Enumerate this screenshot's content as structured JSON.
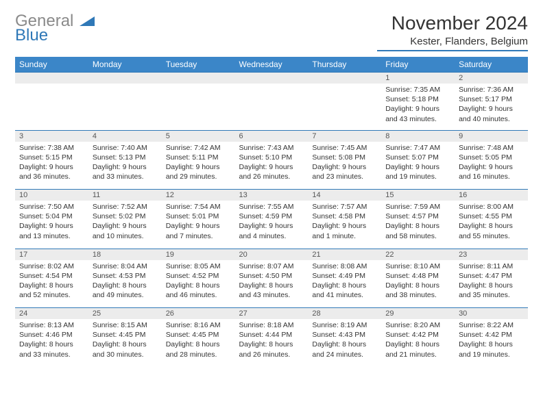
{
  "logo": {
    "word1": "General",
    "word2": "Blue",
    "shape_color": "#2f78b7"
  },
  "header": {
    "title": "November 2024",
    "location": "Kester, Flanders, Belgium"
  },
  "colors": {
    "header_bg": "#3b86c8",
    "header_text": "#ffffff",
    "rule": "#2f78b7",
    "numrow_bg": "#ececec",
    "body_text": "#333333",
    "logo_gray": "#8a8a8a",
    "logo_blue": "#2f78b7"
  },
  "typography": {
    "title_fontsize": 28,
    "location_fontsize": 15,
    "dayhdr_fontsize": 12,
    "daynum_fontsize": 11,
    "cell_fontsize": 10.5
  },
  "day_names": [
    "Sunday",
    "Monday",
    "Tuesday",
    "Wednesday",
    "Thursday",
    "Friday",
    "Saturday"
  ],
  "weeks": [
    {
      "nums": [
        "",
        "",
        "",
        "",
        "",
        "1",
        "2"
      ],
      "cells": [
        [],
        [],
        [],
        [],
        [],
        [
          "Sunrise: 7:35 AM",
          "Sunset: 5:18 PM",
          "Daylight: 9 hours",
          "and 43 minutes."
        ],
        [
          "Sunrise: 7:36 AM",
          "Sunset: 5:17 PM",
          "Daylight: 9 hours",
          "and 40 minutes."
        ]
      ]
    },
    {
      "nums": [
        "3",
        "4",
        "5",
        "6",
        "7",
        "8",
        "9"
      ],
      "cells": [
        [
          "Sunrise: 7:38 AM",
          "Sunset: 5:15 PM",
          "Daylight: 9 hours",
          "and 36 minutes."
        ],
        [
          "Sunrise: 7:40 AM",
          "Sunset: 5:13 PM",
          "Daylight: 9 hours",
          "and 33 minutes."
        ],
        [
          "Sunrise: 7:42 AM",
          "Sunset: 5:11 PM",
          "Daylight: 9 hours",
          "and 29 minutes."
        ],
        [
          "Sunrise: 7:43 AM",
          "Sunset: 5:10 PM",
          "Daylight: 9 hours",
          "and 26 minutes."
        ],
        [
          "Sunrise: 7:45 AM",
          "Sunset: 5:08 PM",
          "Daylight: 9 hours",
          "and 23 minutes."
        ],
        [
          "Sunrise: 7:47 AM",
          "Sunset: 5:07 PM",
          "Daylight: 9 hours",
          "and 19 minutes."
        ],
        [
          "Sunrise: 7:48 AM",
          "Sunset: 5:05 PM",
          "Daylight: 9 hours",
          "and 16 minutes."
        ]
      ]
    },
    {
      "nums": [
        "10",
        "11",
        "12",
        "13",
        "14",
        "15",
        "16"
      ],
      "cells": [
        [
          "Sunrise: 7:50 AM",
          "Sunset: 5:04 PM",
          "Daylight: 9 hours",
          "and 13 minutes."
        ],
        [
          "Sunrise: 7:52 AM",
          "Sunset: 5:02 PM",
          "Daylight: 9 hours",
          "and 10 minutes."
        ],
        [
          "Sunrise: 7:54 AM",
          "Sunset: 5:01 PM",
          "Daylight: 9 hours",
          "and 7 minutes."
        ],
        [
          "Sunrise: 7:55 AM",
          "Sunset: 4:59 PM",
          "Daylight: 9 hours",
          "and 4 minutes."
        ],
        [
          "Sunrise: 7:57 AM",
          "Sunset: 4:58 PM",
          "Daylight: 9 hours",
          "and 1 minute."
        ],
        [
          "Sunrise: 7:59 AM",
          "Sunset: 4:57 PM",
          "Daylight: 8 hours",
          "and 58 minutes."
        ],
        [
          "Sunrise: 8:00 AM",
          "Sunset: 4:55 PM",
          "Daylight: 8 hours",
          "and 55 minutes."
        ]
      ]
    },
    {
      "nums": [
        "17",
        "18",
        "19",
        "20",
        "21",
        "22",
        "23"
      ],
      "cells": [
        [
          "Sunrise: 8:02 AM",
          "Sunset: 4:54 PM",
          "Daylight: 8 hours",
          "and 52 minutes."
        ],
        [
          "Sunrise: 8:04 AM",
          "Sunset: 4:53 PM",
          "Daylight: 8 hours",
          "and 49 minutes."
        ],
        [
          "Sunrise: 8:05 AM",
          "Sunset: 4:52 PM",
          "Daylight: 8 hours",
          "and 46 minutes."
        ],
        [
          "Sunrise: 8:07 AM",
          "Sunset: 4:50 PM",
          "Daylight: 8 hours",
          "and 43 minutes."
        ],
        [
          "Sunrise: 8:08 AM",
          "Sunset: 4:49 PM",
          "Daylight: 8 hours",
          "and 41 minutes."
        ],
        [
          "Sunrise: 8:10 AM",
          "Sunset: 4:48 PM",
          "Daylight: 8 hours",
          "and 38 minutes."
        ],
        [
          "Sunrise: 8:11 AM",
          "Sunset: 4:47 PM",
          "Daylight: 8 hours",
          "and 35 minutes."
        ]
      ]
    },
    {
      "nums": [
        "24",
        "25",
        "26",
        "27",
        "28",
        "29",
        "30"
      ],
      "cells": [
        [
          "Sunrise: 8:13 AM",
          "Sunset: 4:46 PM",
          "Daylight: 8 hours",
          "and 33 minutes."
        ],
        [
          "Sunrise: 8:15 AM",
          "Sunset: 4:45 PM",
          "Daylight: 8 hours",
          "and 30 minutes."
        ],
        [
          "Sunrise: 8:16 AM",
          "Sunset: 4:45 PM",
          "Daylight: 8 hours",
          "and 28 minutes."
        ],
        [
          "Sunrise: 8:18 AM",
          "Sunset: 4:44 PM",
          "Daylight: 8 hours",
          "and 26 minutes."
        ],
        [
          "Sunrise: 8:19 AM",
          "Sunset: 4:43 PM",
          "Daylight: 8 hours",
          "and 24 minutes."
        ],
        [
          "Sunrise: 8:20 AM",
          "Sunset: 4:42 PM",
          "Daylight: 8 hours",
          "and 21 minutes."
        ],
        [
          "Sunrise: 8:22 AM",
          "Sunset: 4:42 PM",
          "Daylight: 8 hours",
          "and 19 minutes."
        ]
      ]
    }
  ]
}
